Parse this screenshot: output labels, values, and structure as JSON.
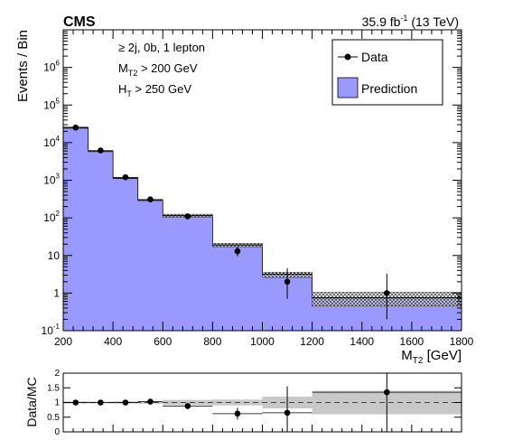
{
  "header": {
    "experiment": "CMS",
    "lumi_value": "35.9 fb",
    "lumi_exp": "-1",
    "lumi_energy": " (13 TeV)"
  },
  "selection": {
    "line1": "≥ 2j, 0b, 1 lepton",
    "line2": {
      "main": "M",
      "sub": "T2",
      "rest": " > 200 GeV"
    },
    "line3": {
      "main": "H",
      "sub": "T",
      "rest": " > 250 GeV"
    }
  },
  "legend": {
    "position": "top-right",
    "data_label": "Data",
    "prediction_label": "Prediction"
  },
  "colors": {
    "prediction_fill": "#9999ff",
    "ratio_band": "#c8c8c8"
  },
  "chart_data": [
    {
      "type": "bar",
      "log_y": true,
      "xlabel": {
        "main": "M",
        "sub": "T2",
        "unit": " [GeV]"
      },
      "ylabel": "Events / Bin",
      "xlim": [
        200,
        1800
      ],
      "ylim": [
        0.1,
        10000000
      ],
      "x_ticks": [
        200,
        400,
        600,
        800,
        1000,
        1200,
        1400,
        1600,
        1800
      ],
      "y_ticks": [
        {
          "v": 0.1,
          "base": "10",
          "exp": "-1"
        },
        {
          "v": 1,
          "base": "1",
          "exp": ""
        },
        {
          "v": 10,
          "base": "10",
          "exp": ""
        },
        {
          "v": 100,
          "base": "10",
          "exp": "2"
        },
        {
          "v": 1000,
          "base": "10",
          "exp": "3"
        },
        {
          "v": 10000,
          "base": "10",
          "exp": "4"
        },
        {
          "v": 100000,
          "base": "10",
          "exp": "5"
        },
        {
          "v": 1000000,
          "base": "10",
          "exp": "6"
        }
      ],
      "bin_edges": [
        200,
        300,
        400,
        500,
        600,
        800,
        1000,
        1200,
        1800
      ],
      "series": [
        {
          "name": "Prediction",
          "values": [
            25000,
            6000,
            1150,
            300,
            115,
            19,
            3.2,
            0.75
          ],
          "unc_low": [
            24000,
            5800,
            1100,
            290,
            105,
            17,
            2.6,
            0.45
          ],
          "unc_high": [
            26000,
            6200,
            1200,
            310,
            125,
            21,
            3.6,
            1.05
          ]
        },
        {
          "name": "Data",
          "x": [
            250,
            350,
            450,
            550,
            700,
            900,
            1100,
            1500
          ],
          "y": [
            25200,
            6200,
            1200,
            310,
            110,
            13,
            2,
            1
          ],
          "err_low": [
            160,
            80,
            35,
            18,
            10,
            3.5,
            1.3,
            0.8
          ],
          "err_high": [
            160,
            80,
            35,
            18,
            10,
            4,
            2.6,
            2.3
          ]
        }
      ]
    },
    {
      "type": "scatter",
      "ylabel": "Data/MC",
      "xlim": [
        200,
        1800
      ],
      "ylim": [
        0,
        2
      ],
      "y_ticks": [
        0,
        0.5,
        1,
        1.5,
        2
      ],
      "reference_line": 1,
      "bin_edges": [
        200,
        300,
        400,
        500,
        600,
        800,
        1000,
        1200,
        1800
      ],
      "band_low": [
        0.96,
        0.97,
        0.96,
        0.96,
        0.91,
        0.9,
        0.8,
        0.6
      ],
      "band_high": [
        1.04,
        1.03,
        1.04,
        1.04,
        1.09,
        1.1,
        1.2,
        1.4
      ],
      "points": {
        "x": [
          250,
          350,
          450,
          550,
          700,
          900,
          1100,
          1500
        ],
        "y": [
          1.0,
          1.0,
          1.0,
          1.03,
          0.88,
          0.62,
          0.65,
          1.35
        ],
        "err": [
          0.01,
          0.01,
          0.03,
          0.06,
          0.09,
          0.2,
          0.9,
          1.5
        ]
      }
    }
  ]
}
